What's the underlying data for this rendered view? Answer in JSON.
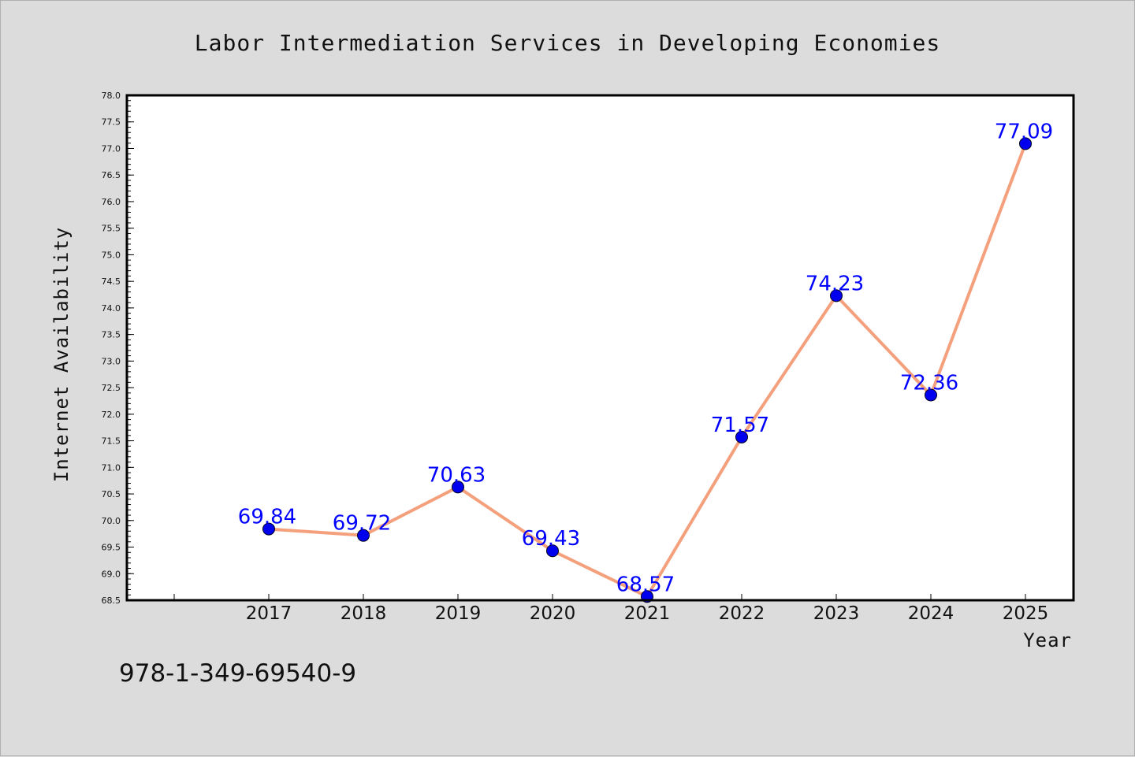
{
  "chart_data": {
    "type": "line",
    "title": "Labor Intermediation Services in Developing Economies",
    "xlabel": "Year",
    "ylabel": "Internet Availability",
    "categories": [
      "2017",
      "2018",
      "2019",
      "2020",
      "2021",
      "2022",
      "2023",
      "2024",
      "2025"
    ],
    "series": [
      {
        "values": [
          69.84,
          69.72,
          70.63,
          69.43,
          68.57,
          71.57,
          74.23,
          72.36,
          77.09
        ],
        "data_labels": [
          "69.84",
          "69.72",
          "70.63",
          "69.43",
          "68.57",
          "71.57",
          "74.23",
          "72.36",
          "77.09"
        ],
        "line_color": "#f4a07c",
        "marker_color": "#0000ee"
      }
    ],
    "ylim": [
      68.5,
      78.0
    ],
    "yticks": [
      "68.5",
      "69.0",
      "69.5",
      "70.0",
      "70.5",
      "71.0",
      "71.5",
      "72.0",
      "72.5",
      "73.0",
      "73.5",
      "74.0",
      "74.5",
      "75.0",
      "75.5",
      "76.0",
      "76.5",
      "77.0",
      "77.5",
      "78.0"
    ],
    "grid": false,
    "legend": "none"
  },
  "footer": {
    "isbn": "978-1-349-69540-9"
  },
  "colors": {
    "background": "#dcdcdc",
    "plot_background": "#ffffff",
    "label_color": "#0000ff"
  }
}
